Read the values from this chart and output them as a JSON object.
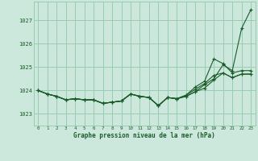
{
  "title": "Graphe pression niveau de la mer (hPa)",
  "background_color": "#cce8dc",
  "grid_color": "#99ccb3",
  "line_color": "#1a5c2a",
  "xlim": [
    -0.5,
    23.5
  ],
  "ylim": [
    1022.5,
    1027.8
  ],
  "yticks": [
    1023,
    1024,
    1025,
    1026,
    1027
  ],
  "xticks": [
    0,
    1,
    2,
    3,
    4,
    5,
    6,
    7,
    8,
    9,
    10,
    11,
    12,
    13,
    14,
    15,
    16,
    17,
    18,
    19,
    20,
    21,
    22,
    23
  ],
  "series": [
    [
      1024.0,
      1023.85,
      1023.75,
      1023.6,
      1023.65,
      1023.6,
      1023.6,
      1023.45,
      1023.5,
      1023.55,
      1023.85,
      1023.75,
      1023.7,
      1023.35,
      1023.7,
      1023.65,
      1023.75,
      1023.95,
      1024.25,
      1024.5,
      1025.1,
      1024.85,
      1026.65,
      1027.45
    ],
    [
      1024.0,
      1023.85,
      1023.75,
      1023.6,
      1023.65,
      1023.6,
      1023.6,
      1023.45,
      1023.5,
      1023.55,
      1023.85,
      1023.75,
      1023.7,
      1023.35,
      1023.7,
      1023.65,
      1023.8,
      1024.15,
      1024.4,
      1025.35,
      1025.15,
      1024.75,
      1024.85,
      1024.85
    ],
    [
      1024.0,
      1023.85,
      1023.75,
      1023.6,
      1023.65,
      1023.6,
      1023.6,
      1023.45,
      1023.5,
      1023.55,
      1023.85,
      1023.75,
      1023.7,
      1023.35,
      1023.7,
      1023.65,
      1023.8,
      1024.05,
      1024.3,
      1024.65,
      1024.75,
      1024.55,
      1024.7,
      1024.7
    ],
    [
      1024.0,
      1023.85,
      1023.75,
      1023.6,
      1023.65,
      1023.6,
      1023.6,
      1023.45,
      1023.5,
      1023.55,
      1023.85,
      1023.75,
      1023.7,
      1023.35,
      1023.7,
      1023.65,
      1023.75,
      1023.95,
      1024.1,
      1024.45,
      1024.75,
      1024.55,
      1024.7,
      1024.7
    ]
  ]
}
